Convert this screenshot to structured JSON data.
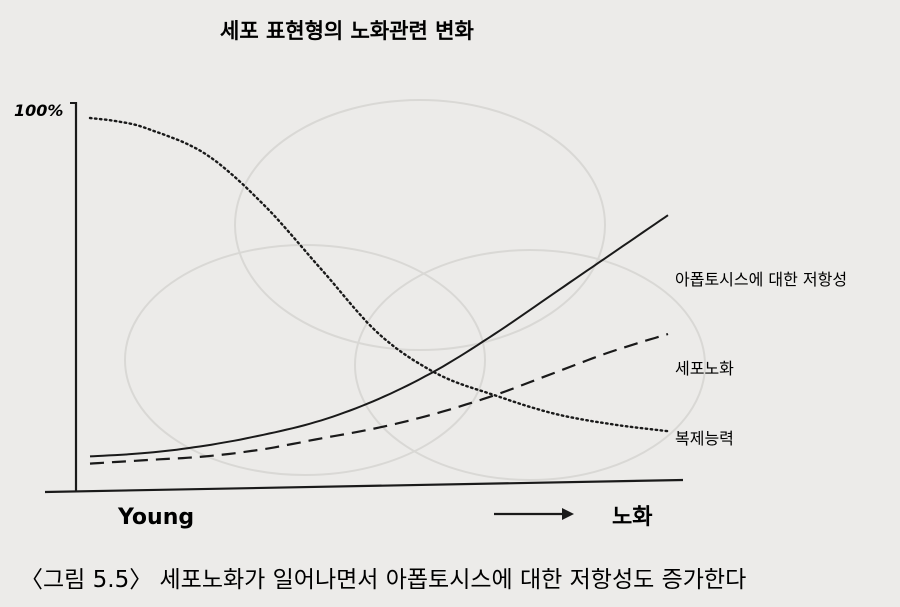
{
  "chart_data": {
    "type": "line",
    "title": "세포 표현형의 노화관련 변화",
    "ytick_label": "100%",
    "xlabel_left": "Young",
    "xlabel_right": "노화",
    "ylim": [
      0,
      100
    ],
    "xlim": [
      0,
      100
    ],
    "grid": false,
    "legend": "labels at line ends",
    "series": [
      {
        "name": "아폽토시스에 대한 저항성",
        "style": "solid",
        "x": [
          0,
          10,
          20,
          30,
          40,
          50,
          60,
          70,
          80,
          90,
          100
        ],
        "y": [
          6,
          7,
          9,
          12,
          16,
          22,
          30,
          40,
          51,
          62,
          73
        ]
      },
      {
        "name": "세포노화",
        "style": "dashed",
        "x": [
          0,
          10,
          20,
          30,
          40,
          50,
          60,
          70,
          80,
          90,
          100
        ],
        "y": [
          4,
          5,
          6,
          8,
          11,
          14,
          18,
          23,
          29,
          35,
          40
        ]
      },
      {
        "name": "복제능력",
        "style": "dotted",
        "x": [
          0,
          5,
          10,
          20,
          30,
          40,
          50,
          60,
          70,
          80,
          90,
          100
        ],
        "y": [
          100,
          99,
          97,
          90,
          76,
          58,
          40,
          29,
          23,
          18,
          15,
          13
        ]
      }
    ]
  },
  "caption": "〈그림 5.5〉 세포노화가 일어나면서 아폽토시스에 대한 저항성도 증가한다",
  "colors": {
    "ink": "#1a1a1a",
    "paper": "#ecebe9"
  }
}
